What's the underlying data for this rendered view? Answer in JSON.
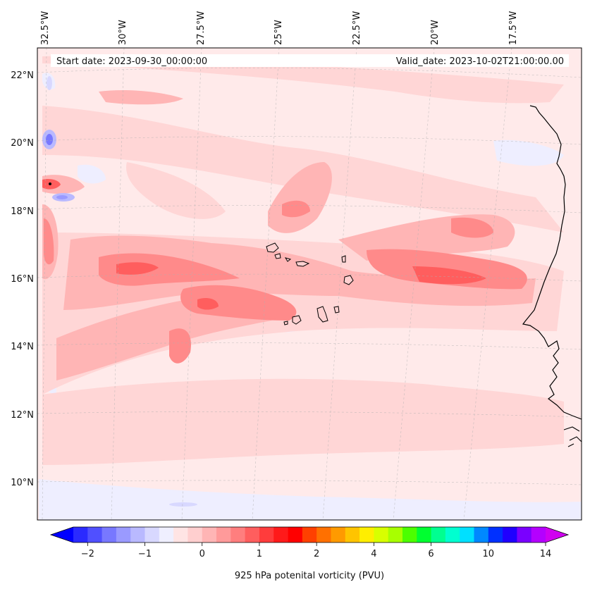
{
  "map": {
    "lon_labels": [
      "32.5°W",
      "30°W",
      "27.5°W",
      "25°W",
      "22.5°W",
      "20°W",
      "17.5°W"
    ],
    "lat_labels": [
      "22°N",
      "20°N",
      "18°N",
      "16°N",
      "14°N",
      "12°N",
      "10°N"
    ],
    "start_date_text": "Start date: 2023-09-30_00:00:00",
    "valid_date_text": "Valid_date: 2023-10-02T21:00:00.00"
  },
  "colorbar": {
    "ticks": [
      "−2",
      "−1",
      "0",
      "1",
      "2",
      "4",
      "6",
      "10",
      "14"
    ],
    "label": "925 hPa potenital vorticity (PVU)",
    "colors": [
      "#0000ff",
      "#2a2aff",
      "#5050ff",
      "#7878ff",
      "#9a9aff",
      "#b9b9ff",
      "#d8d8ff",
      "#efefff",
      "#ffe4e4",
      "#ffcfcf",
      "#ffb5b5",
      "#ff9a9a",
      "#ff7e7e",
      "#ff5e5e",
      "#ff3c3c",
      "#ff1a1a",
      "#ff0000",
      "#ff4000",
      "#ff7000",
      "#ff9a00",
      "#ffc400",
      "#ffee00",
      "#d8ff00",
      "#a8ff00",
      "#4cff00",
      "#00ff30",
      "#00ff90",
      "#00ffd0",
      "#00e0ff",
      "#0088ff",
      "#0030ff",
      "#2000ff",
      "#7a00ff",
      "#b400ff",
      "#d000f0"
    ]
  }
}
